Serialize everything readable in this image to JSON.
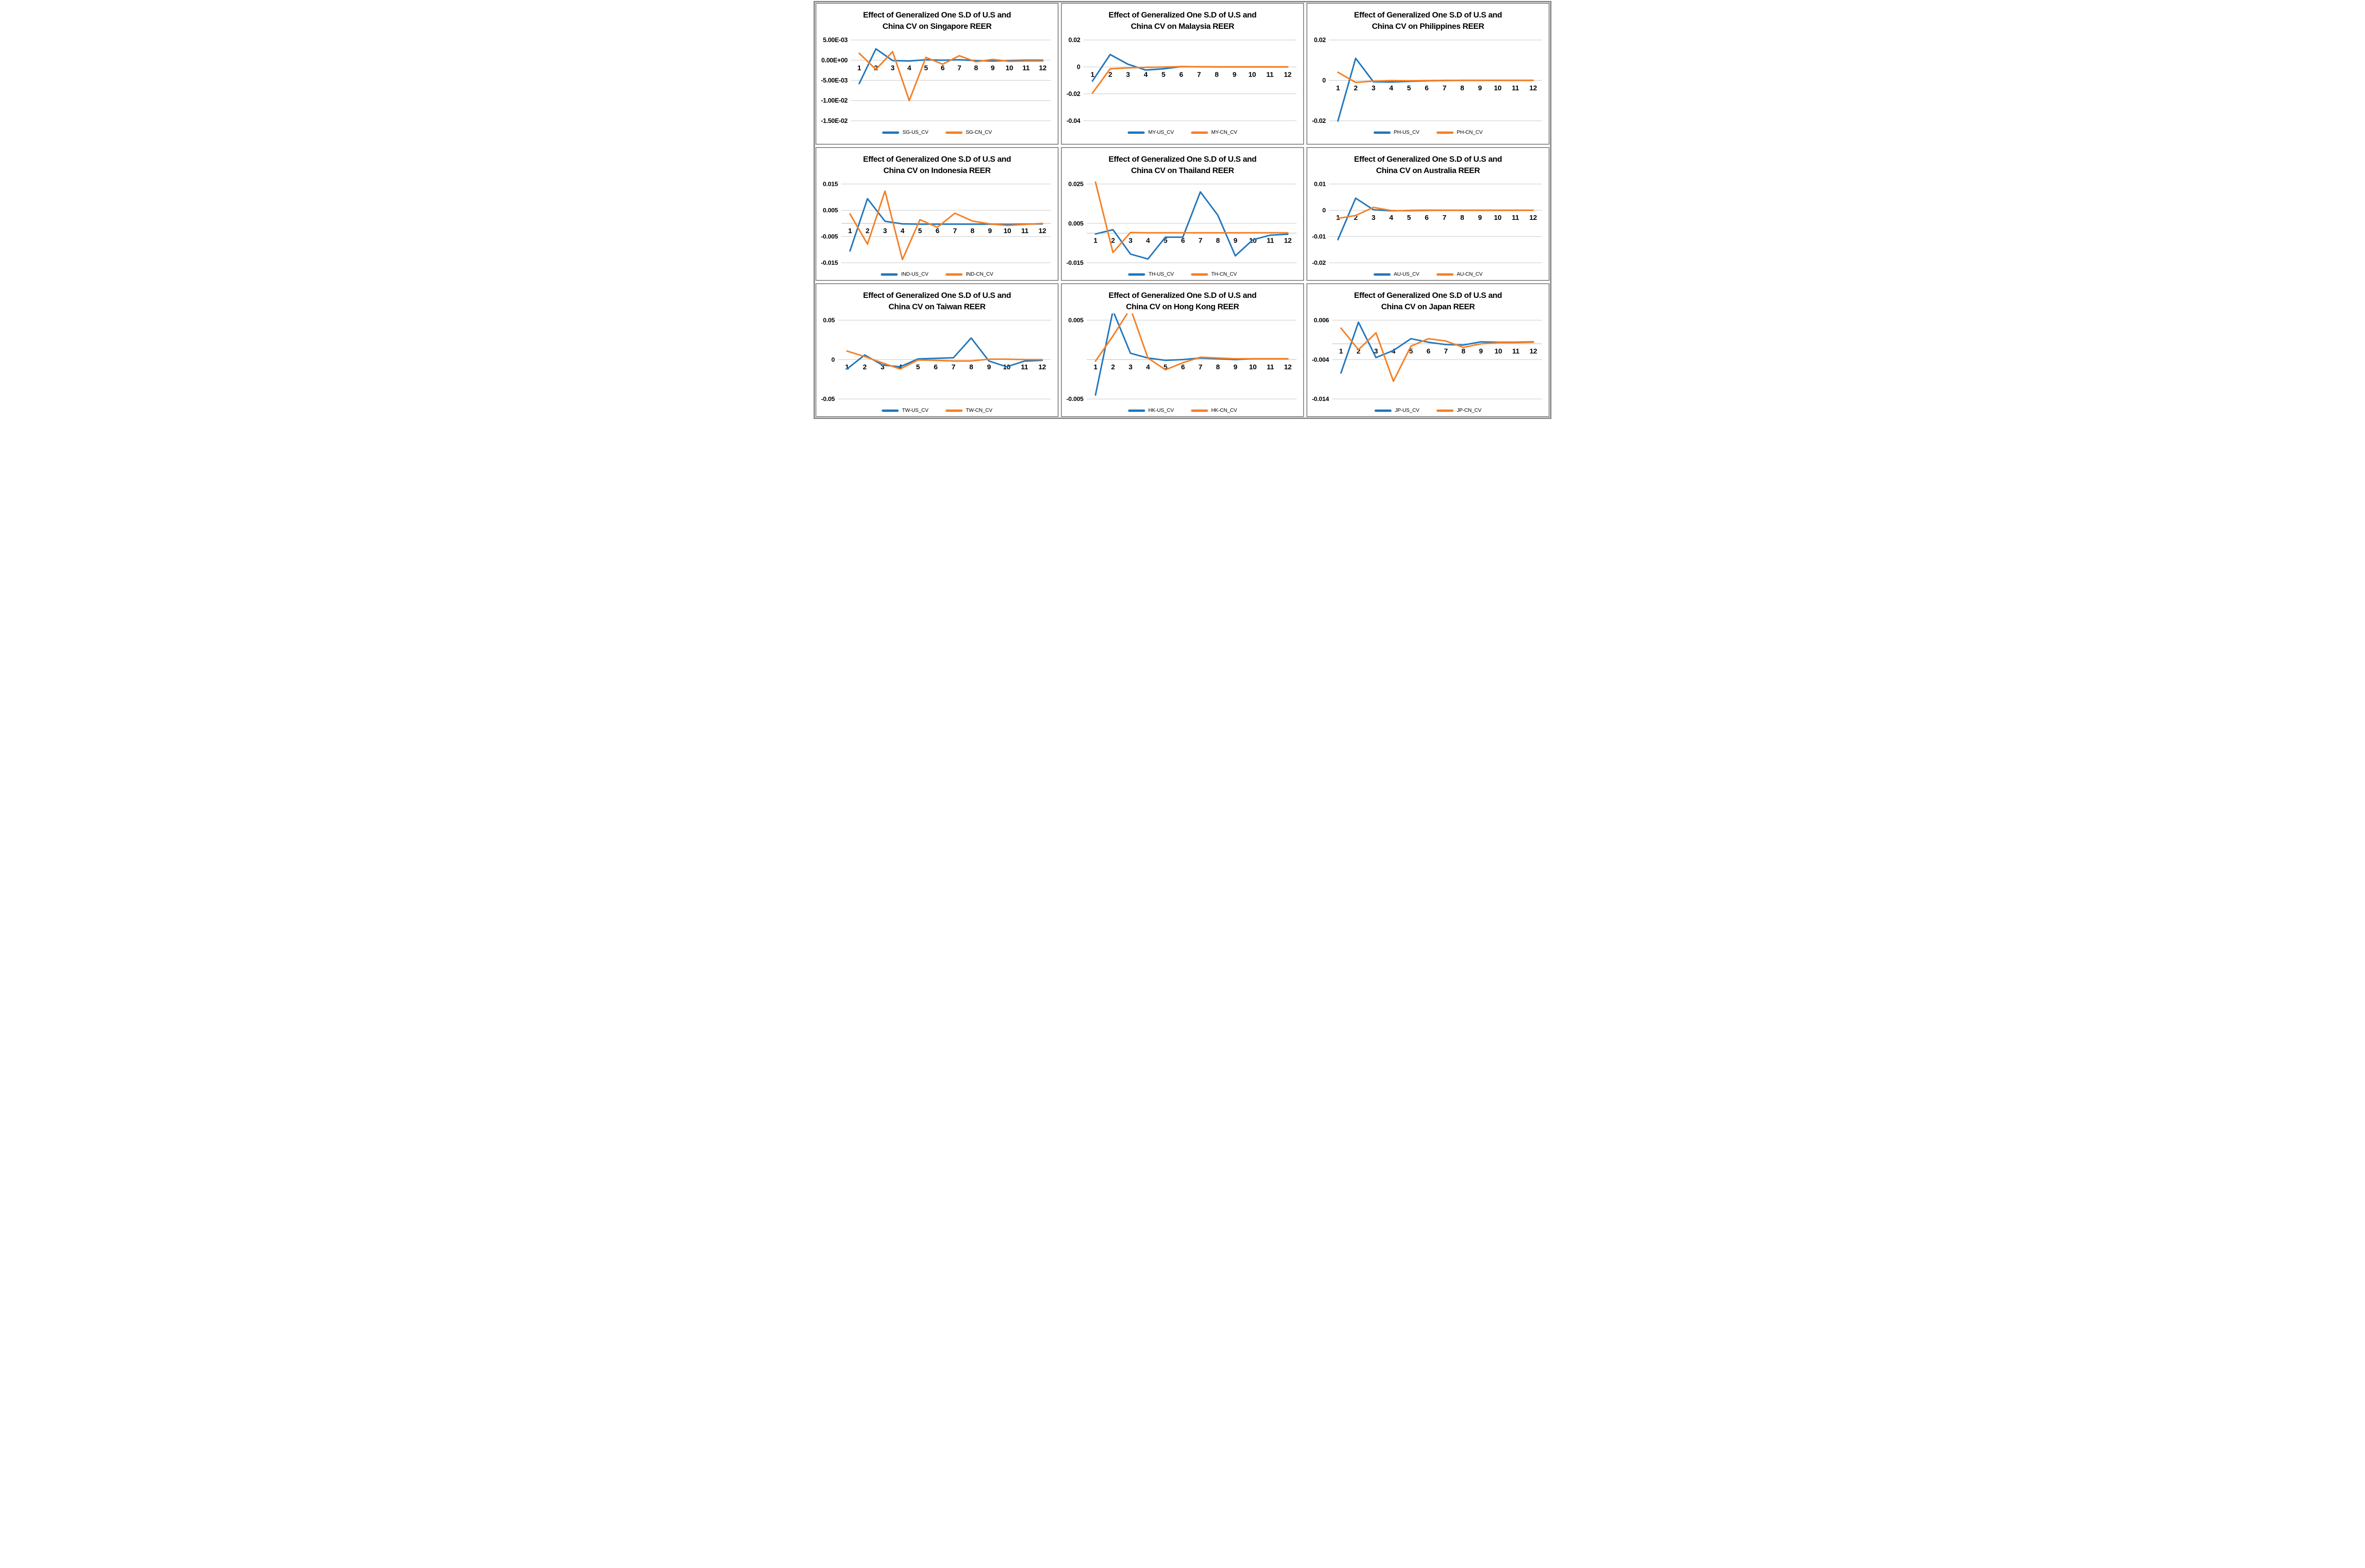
{
  "colors": {
    "us_series_blue": "#2277BD",
    "cn_series_orange": "#F57F25",
    "gridline": "#D6D6D6",
    "panel_border": "#8F8F8F",
    "outer_border": "#8A8A8A",
    "text": "#000000"
  },
  "chart_data": [
    {
      "type": "line",
      "country": "Singapore",
      "title_line1": "Effect of Generalized One S.D of U.S and",
      "title_line2": "China CV on Singapore REER",
      "x_labels": [
        "1",
        "2",
        "3",
        "4",
        "5",
        "6",
        "7",
        "8",
        "9",
        "10",
        "11",
        "12"
      ],
      "y_ticks": [
        {
          "label": "5.00E-03",
          "value": 0.005
        },
        {
          "label": "0.00E+00",
          "value": 0.0
        },
        {
          "label": "-5.00E-03",
          "value": -0.005
        },
        {
          "label": "-1.00E-02",
          "value": -0.01
        },
        {
          "label": "-1.50E-02",
          "value": -0.015
        }
      ],
      "ylim": [
        -0.015,
        0.005
      ],
      "grid": true,
      "legend_position": "bottom",
      "series": [
        {
          "name": "SG-US_CV",
          "color": "#2277BD",
          "values": [
            -0.0058,
            0.0028,
            -0.0001,
            -0.0002,
            0.0001,
            0.0,
            0.0001,
            -0.0001,
            -0.0002,
            -0.0001,
            0.0,
            0.0
          ]
        },
        {
          "name": "SG-CN_CV",
          "color": "#F57F25",
          "values": [
            0.0017,
            -0.0023,
            0.0021,
            -0.01,
            0.0007,
            -0.001,
            0.0011,
            -0.0004,
            0.0002,
            -0.0003,
            -0.0002,
            -0.0002
          ]
        }
      ]
    },
    {
      "type": "line",
      "country": "Malaysia",
      "title_line1": "Effect of Generalized One S.D of U.S and",
      "title_line2": "China CV on Malaysia REER",
      "x_labels": [
        "1",
        "2",
        "3",
        "4",
        "5",
        "6",
        "7",
        "8",
        "9",
        "10",
        "11",
        "12"
      ],
      "y_ticks": [
        {
          "label": "0.02",
          "value": 0.02
        },
        {
          "label": "0",
          "value": 0.0
        },
        {
          "label": "-0.02",
          "value": -0.02
        },
        {
          "label": "-0.04",
          "value": -0.04
        }
      ],
      "ylim": [
        -0.04,
        0.02
      ],
      "grid": true,
      "legend_position": "bottom",
      "series": [
        {
          "name": "MY-US_CV",
          "color": "#2277BD",
          "values": [
            -0.0105,
            0.0092,
            0.002,
            -0.0023,
            -0.0014,
            0.0002,
            0.0001,
            0.0,
            0.0,
            0.0,
            0.0,
            0.0
          ]
        },
        {
          "name": "MY-CN_CV",
          "color": "#F57F25",
          "values": [
            -0.0195,
            -0.0014,
            -0.0007,
            -0.0003,
            -0.0001,
            0.0002,
            0.0001,
            0.0,
            0.0,
            0.0,
            0.0,
            0.0
          ]
        }
      ]
    },
    {
      "type": "line",
      "country": "Philippines",
      "title_line1": "Effect of Generalized One S.D of U.S and",
      "title_line2": "China CV on Philippines REER",
      "x_labels": [
        "1",
        "2",
        "3",
        "4",
        "5",
        "6",
        "7",
        "8",
        "9",
        "10",
        "11",
        "12"
      ],
      "y_ticks": [
        {
          "label": "0.02",
          "value": 0.02
        },
        {
          "label": "0",
          "value": 0.0
        },
        {
          "label": "-0.02",
          "value": -0.02
        }
      ],
      "ylim": [
        -0.02,
        0.02
      ],
      "grid": true,
      "legend_position": "bottom",
      "series": [
        {
          "name": "PH-US_CV",
          "color": "#2277BD",
          "values": [
            -0.0201,
            0.0109,
            -0.0007,
            -0.0008,
            -0.0005,
            -0.0002,
            -0.0001,
            0.0,
            0.0,
            0.0,
            0.0,
            0.0
          ]
        },
        {
          "name": "PH-CN_CV",
          "color": "#F57F25",
          "values": [
            0.004,
            -0.001,
            -0.0004,
            -0.0001,
            -0.0002,
            -0.0001,
            0.0,
            0.0,
            0.0,
            0.0,
            0.0,
            0.0
          ]
        }
      ]
    },
    {
      "type": "line",
      "country": "Indonesia",
      "title_line1": "Effect of Generalized One S.D of U.S and",
      "title_line2": "China CV on Indonesia REER",
      "x_labels": [
        "1",
        "2",
        "3",
        "4",
        "5",
        "6",
        "7",
        "8",
        "9",
        "10",
        "11",
        "12"
      ],
      "y_ticks": [
        {
          "label": "0.015",
          "value": 0.015
        },
        {
          "label": "0.005",
          "value": 0.005
        },
        {
          "label": "-0.005",
          "value": -0.005
        },
        {
          "label": "-0.015",
          "value": -0.015
        }
      ],
      "ylim": [
        -0.015,
        0.015
      ],
      "grid": true,
      "legend_position": "bottom",
      "series": [
        {
          "name": "IND-US_CV",
          "color": "#2277BD",
          "values": [
            -0.0105,
            0.0094,
            0.0008,
            -0.0002,
            -0.0003,
            -0.0003,
            -0.0003,
            -0.0003,
            -0.0003,
            -0.0004,
            -0.0003,
            -0.0002
          ]
        },
        {
          "name": "IND-CN_CV",
          "color": "#F57F25",
          "values": [
            0.0036,
            -0.0079,
            0.0123,
            -0.0138,
            0.0014,
            -0.0015,
            0.0039,
            0.0009,
            -0.0002,
            -0.0008,
            -0.0004,
            0.0
          ]
        }
      ]
    },
    {
      "type": "line",
      "country": "Thailand",
      "title_line1": "Effect of Generalized One S.D of U.S and",
      "title_line2": "China CV on Thailand REER",
      "x_labels": [
        "1",
        "2",
        "3",
        "4",
        "5",
        "6",
        "7",
        "8",
        "9",
        "10",
        "11",
        "12"
      ],
      "y_ticks": [
        {
          "label": "0.025",
          "value": 0.025
        },
        {
          "label": "0.005",
          "value": 0.005
        },
        {
          "label": "-0.015",
          "value": -0.015
        }
      ],
      "ylim": [
        -0.015,
        0.025
      ],
      "grid": true,
      "legend_position": "bottom",
      "series": [
        {
          "name": "TH-US_CV",
          "color": "#2277BD",
          "values": [
            -0.0004,
            0.0018,
            -0.0106,
            -0.0131,
            -0.002,
            -0.002,
            0.021,
            0.0091,
            -0.0115,
            -0.0033,
            -0.001,
            -0.0005
          ]
        },
        {
          "name": "TH-CN_CV",
          "color": "#F57F25",
          "values": [
            0.026,
            -0.0098,
            0.0004,
            0.0002,
            0.0002,
            0.0002,
            0.0002,
            0.0002,
            0.0002,
            0.0002,
            0.0002,
            0.0002
          ]
        }
      ]
    },
    {
      "type": "line",
      "country": "Australia",
      "title_line1": "Effect of Generalized One S.D of U.S and",
      "title_line2": "China CV on Australia REER",
      "x_labels": [
        "1",
        "2",
        "3",
        "4",
        "5",
        "6",
        "7",
        "8",
        "9",
        "10",
        "11",
        "12"
      ],
      "y_ticks": [
        {
          "label": "0.01",
          "value": 0.01
        },
        {
          "label": "0",
          "value": 0.0
        },
        {
          "label": "-0.01",
          "value": -0.01
        },
        {
          "label": "-0.02",
          "value": -0.02
        }
      ],
      "ylim": [
        -0.02,
        0.01
      ],
      "grid": true,
      "legend_position": "bottom",
      "series": [
        {
          "name": "AU-US_CV",
          "color": "#2277BD",
          "values": [
            -0.0112,
            0.0046,
            0.0002,
            -0.0002,
            -0.0001,
            0.0,
            0.0,
            0.0,
            0.0,
            0.0,
            0.0,
            0.0
          ]
        },
        {
          "name": "AU-CN_CV",
          "color": "#F57F25",
          "values": [
            -0.0031,
            -0.002,
            0.0011,
            -0.0001,
            -0.0002,
            -0.0001,
            0.0,
            0.0,
            0.0,
            0.0,
            0.0,
            0.0
          ]
        }
      ]
    },
    {
      "type": "line",
      "country": "Taiwan",
      "title_line1": "Effect of Generalized One S.D of U.S and",
      "title_line2": "China CV on Taiwan REER",
      "x_labels": [
        "1",
        "2",
        "3",
        "4",
        "5",
        "6",
        "7",
        "8",
        "9",
        "10",
        "11",
        "12"
      ],
      "y_ticks": [
        {
          "label": "0.05",
          "value": 0.05
        },
        {
          "label": "0",
          "value": 0.0
        },
        {
          "label": "-0.05",
          "value": -0.05
        }
      ],
      "ylim": [
        -0.05,
        0.05
      ],
      "grid": true,
      "legend_position": "bottom",
      "series": [
        {
          "name": "TW-US_CV",
          "color": "#2277BD",
          "values": [
            -0.012,
            0.0058,
            -0.0069,
            -0.0092,
            0.0008,
            0.0015,
            0.0023,
            0.0274,
            -0.0018,
            -0.0092,
            -0.002,
            -0.001
          ]
        },
        {
          "name": "TW-CN_CV",
          "color": "#F57F25",
          "values": [
            0.0108,
            0.0038,
            -0.0043,
            -0.012,
            -0.0005,
            -0.001,
            -0.0018,
            -0.0018,
            0.0005,
            0.0005,
            0.0,
            0.0
          ]
        }
      ]
    },
    {
      "type": "line",
      "country": "Hong Kong",
      "title_line1": "Effect of Generalized One S.D of U.S and",
      "title_line2": "China CV on Hong Kong REER",
      "x_labels": [
        "1",
        "2",
        "3",
        "4",
        "5",
        "6",
        "7",
        "8",
        "9",
        "10",
        "11",
        "12"
      ],
      "y_ticks": [
        {
          "label": "0.005",
          "value": 0.005
        },
        {
          "label": "-0.005",
          "value": -0.005
        }
      ],
      "ylim": [
        -0.005,
        0.005
      ],
      "grid": true,
      "legend_position": "bottom",
      "series": [
        {
          "name": "HK-US_CV",
          "color": "#2277BD",
          "values": [
            -0.0045,
            0.0062,
            0.0008,
            0.0002,
            -0.0001,
            0.0,
            0.0002,
            0.0001,
            0.0,
            0.0001,
            0.0001,
            0.0001
          ]
        },
        {
          "name": "HK-CN_CV",
          "color": "#F57F25",
          "values": [
            -0.0002,
            0.003,
            0.0065,
            0.0002,
            -0.0013,
            -0.0004,
            0.0003,
            0.0002,
            0.0001,
            0.0001,
            0.0001,
            0.0001
          ]
        }
      ]
    },
    {
      "type": "line",
      "country": "Japan",
      "title_line1": "Effect of Generalized One S.D of U.S and",
      "title_line2": "China CV on Japan REER",
      "x_labels": [
        "1",
        "2",
        "3",
        "4",
        "5",
        "6",
        "7",
        "8",
        "9",
        "10",
        "11",
        "12"
      ],
      "y_ticks": [
        {
          "label": "0.006",
          "value": 0.006
        },
        {
          "label": "-0.004",
          "value": -0.004
        },
        {
          "label": "-0.014",
          "value": -0.014
        }
      ],
      "ylim": [
        -0.014,
        0.006
      ],
      "grid": true,
      "legend_position": "bottom",
      "series": [
        {
          "name": "JP-US_CV",
          "color": "#2277BD",
          "values": [
            -0.0074,
            0.0055,
            -0.0035,
            -0.0017,
            0.0013,
            0.0004,
            -0.0002,
            -0.0003,
            0.0005,
            0.0004,
            0.0004,
            0.0005
          ]
        },
        {
          "name": "JP-CN_CV",
          "color": "#F57F25",
          "values": [
            0.004,
            -0.0015,
            0.0028,
            -0.0095,
            -0.0006,
            0.0013,
            0.0007,
            -0.0009,
            0.0,
            0.0003,
            0.0003,
            0.0004
          ]
        }
      ]
    }
  ]
}
